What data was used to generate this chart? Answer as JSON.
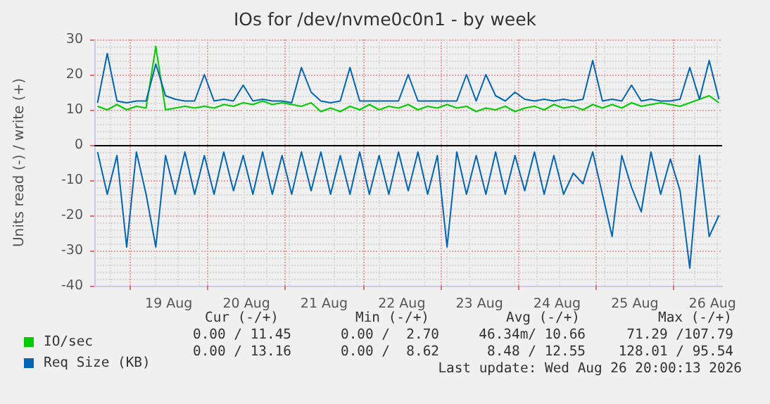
{
  "chart_data": {
    "type": "line",
    "title": "IOs for /dev/nvme0c0n1 - by week",
    "ylabel": "Units read (-) / write (+)",
    "x": [
      "2026-08-18T14:00",
      "2026-08-18T17:00",
      "2026-08-18T20:00",
      "2026-08-18T23:00",
      "2026-08-19T02:00",
      "2026-08-19T05:00",
      "2026-08-19T08:00",
      "2026-08-19T11:00",
      "2026-08-19T14:00",
      "2026-08-19T17:00",
      "2026-08-19T20:00",
      "2026-08-19T23:00",
      "2026-08-20T02:00",
      "2026-08-20T05:00",
      "2026-08-20T08:00",
      "2026-08-20T11:00",
      "2026-08-20T14:00",
      "2026-08-20T17:00",
      "2026-08-20T20:00",
      "2026-08-20T23:00",
      "2026-08-21T02:00",
      "2026-08-21T05:00",
      "2026-08-21T08:00",
      "2026-08-21T11:00",
      "2026-08-21T14:00",
      "2026-08-21T17:00",
      "2026-08-21T20:00",
      "2026-08-21T23:00",
      "2026-08-22T02:00",
      "2026-08-22T05:00",
      "2026-08-22T08:00",
      "2026-08-22T11:00",
      "2026-08-22T14:00",
      "2026-08-22T17:00",
      "2026-08-22T20:00",
      "2026-08-22T23:00",
      "2026-08-23T02:00",
      "2026-08-23T05:00",
      "2026-08-23T08:00",
      "2026-08-23T11:00",
      "2026-08-23T14:00",
      "2026-08-23T17:00",
      "2026-08-23T20:00",
      "2026-08-23T23:00",
      "2026-08-24T02:00",
      "2026-08-24T05:00",
      "2026-08-24T08:00",
      "2026-08-24T11:00",
      "2026-08-24T14:00",
      "2026-08-24T17:00",
      "2026-08-24T20:00",
      "2026-08-24T23:00",
      "2026-08-25T02:00",
      "2026-08-25T05:00",
      "2026-08-25T08:00",
      "2026-08-25T11:00",
      "2026-08-25T14:00",
      "2026-08-25T17:00",
      "2026-08-25T20:00",
      "2026-08-25T23:00",
      "2026-08-26T02:00",
      "2026-08-26T05:00",
      "2026-08-26T08:00",
      "2026-08-26T11:00",
      "2026-08-26T14:00"
    ],
    "series": [
      {
        "name": "IO/sec",
        "color": "#00cc00",
        "values": [
          11,
          10,
          11.5,
          10,
          11,
          10.5,
          28,
          10,
          10.5,
          11,
          10.5,
          11,
          10.5,
          11.5,
          11,
          12,
          11.5,
          12.5,
          11.5,
          12,
          11.5,
          11,
          12,
          9.5,
          10.5,
          9.5,
          11,
          10,
          11.5,
          10,
          11,
          10.5,
          11.5,
          10,
          11,
          10.5,
          11.5,
          10.5,
          11,
          9.5,
          10.5,
          10,
          11,
          9.5,
          10.5,
          11,
          10,
          11.5,
          10.5,
          11,
          10,
          11.5,
          10.5,
          11.5,
          10.5,
          12,
          11,
          11.5,
          12,
          11.5,
          11,
          12,
          13,
          14,
          12
        ]
      },
      {
        "name": "Req Size (KB)",
        "color": "#0066b3",
        "values": [
          12,
          26,
          12.5,
          12,
          12.5,
          12.5,
          23,
          14,
          13,
          12.5,
          12.5,
          20,
          12.5,
          13,
          12.5,
          17,
          12.5,
          13,
          12.5,
          12.5,
          12,
          22,
          15,
          12.5,
          12,
          12.5,
          22,
          12.5,
          12.5,
          12.5,
          12.5,
          12.5,
          20,
          12.5,
          12.5,
          12.5,
          12.5,
          12.5,
          20,
          12.5,
          20,
          14,
          12.5,
          15,
          13,
          12.5,
          13,
          12.5,
          13,
          12.5,
          13,
          24,
          12.5,
          13,
          12.5,
          17,
          12.5,
          13,
          12.5,
          12.5,
          13,
          22,
          13,
          24,
          13
        ]
      },
      {
        "color": "#0066b3",
        "values": [
          -2,
          -14,
          -3,
          -29,
          -2,
          -14,
          -29,
          -3,
          -14,
          -2,
          -14,
          -3,
          -14,
          -2,
          -13,
          -3,
          -14,
          -2,
          -14,
          -3,
          -14,
          -2,
          -13,
          -2,
          -14,
          -3,
          -14,
          -2,
          -14,
          -3,
          -14,
          -2,
          -13,
          -2,
          -14,
          -3,
          -29,
          -2,
          -14,
          -3,
          -14,
          -2,
          -14,
          -3,
          -13,
          -2,
          -14,
          -3,
          -14,
          -8,
          -11,
          -2,
          -14,
          -26,
          -3,
          -12,
          -19,
          -2,
          -14,
          -4,
          -13,
          -35,
          -3,
          -26,
          -20
        ]
      }
    ],
    "xlim": [
      "2026-08-18T13:00",
      "2026-08-26T15:00"
    ],
    "xticks": [
      {
        "value": "2026-08-19T00:00",
        "label": null
      },
      {
        "value": "2026-08-19T12:00",
        "label": "19 Aug"
      },
      {
        "value": "2026-08-20T00:00",
        "label": null
      },
      {
        "value": "2026-08-20T12:00",
        "label": "20 Aug"
      },
      {
        "value": "2026-08-21T00:00",
        "label": null
      },
      {
        "value": "2026-08-21T12:00",
        "label": "21 Aug"
      },
      {
        "value": "2026-08-22T00:00",
        "label": null
      },
      {
        "value": "2026-08-22T12:00",
        "label": "22 Aug"
      },
      {
        "value": "2026-08-23T00:00",
        "label": null
      },
      {
        "value": "2026-08-23T12:00",
        "label": "23 Aug"
      },
      {
        "value": "2026-08-24T00:00",
        "label": null
      },
      {
        "value": "2026-08-24T12:00",
        "label": "24 Aug"
      },
      {
        "value": "2026-08-25T00:00",
        "label": null
      },
      {
        "value": "2026-08-25T12:00",
        "label": "25 Aug"
      },
      {
        "value": "2026-08-26T00:00",
        "label": null
      },
      {
        "value": "2026-08-26T12:00",
        "label": "26 Aug"
      }
    ],
    "ylim": [
      -40,
      30
    ],
    "yticks": [
      -40,
      -30,
      -20,
      -10,
      0,
      10,
      20,
      30
    ],
    "ref_lines": [
      {
        "axis": "y",
        "value": 0,
        "color": "#000000"
      }
    ],
    "grid": true,
    "legend": "bottom left",
    "marker": "none",
    "line_style": "solid",
    "annotations": [
      "Cur (-/+)",
      "Min (-/+)",
      "Avg (-/+)",
      "Max (-/+)",
      "0.00 / 11.45",
      "0.00 /  2.70",
      "46.34m/ 10.66",
      "71.29 /107.79",
      "0.00 / 13.16",
      "0.00 /  8.62",
      "8.48 / 12.55",
      "128.01 / 95.54",
      "Last update: Wed Aug 26 20:00:13 2026"
    ]
  }
}
